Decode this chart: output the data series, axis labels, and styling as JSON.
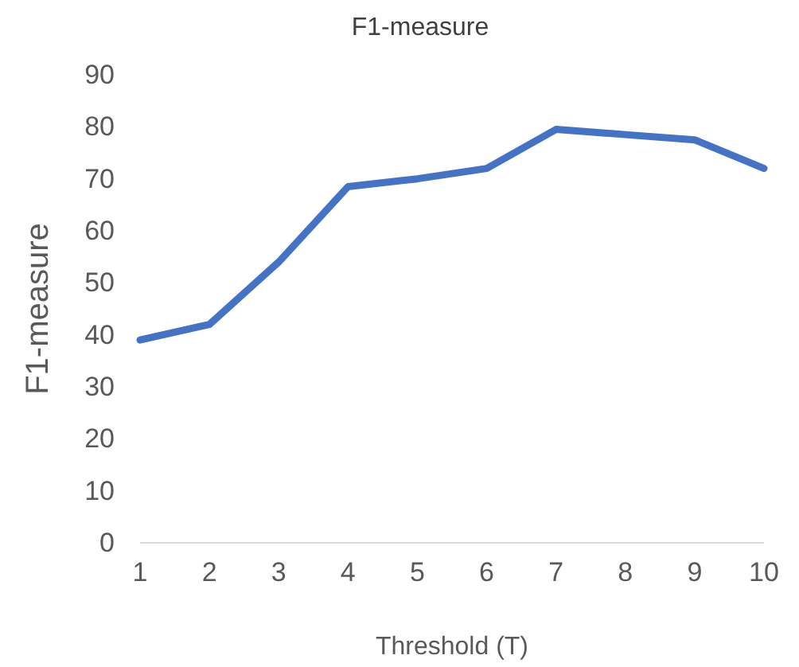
{
  "chart_data": {
    "type": "line",
    "title": "F1-measure",
    "xlabel": "Threshold (T)",
    "ylabel": "F1-measure",
    "x": [
      1,
      2,
      3,
      4,
      5,
      6,
      7,
      8,
      9,
      10
    ],
    "series": [
      {
        "color": "#4472c4",
        "values": [
          39,
          42,
          54,
          68.5,
          70,
          72,
          79.5,
          78.5,
          77.5,
          72
        ]
      }
    ],
    "xlim": [
      1,
      10
    ],
    "xticks": [
      1,
      2,
      3,
      4,
      5,
      6,
      7,
      8,
      9,
      10
    ],
    "ylim": [
      0,
      90
    ],
    "yticks": [
      0,
      10,
      20,
      30,
      40,
      50,
      60,
      70,
      80,
      90
    ],
    "grid": false,
    "marker": "none",
    "line_style": "solid"
  }
}
